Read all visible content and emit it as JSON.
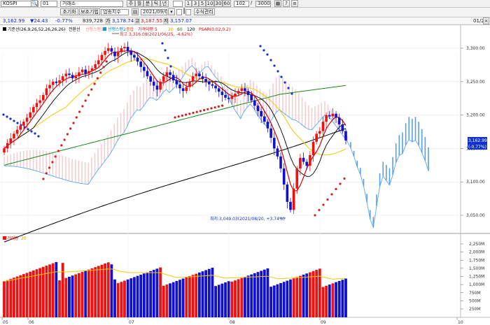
{
  "toolbar": {
    "symbol": "KOSPI",
    "num": "01",
    "exchange": "거래소",
    "period_tabs": [
      "주",
      "월",
      "분",
      "틱",
      "년"
    ],
    "interval_buttons": [
      "1",
      "3",
      "5",
      "10",
      "30",
      "60"
    ],
    "count": "102",
    "total": "3000",
    "right_icons": [
      "grid-icon",
      "help-icon",
      "menu-icon"
    ]
  },
  "toolbar2": {
    "reset": "초기화",
    "aux": "보조기법",
    "industry": "업종지수",
    "date": "2021/09/08",
    "modify": "수식관리"
  },
  "infobar": {
    "items": [
      "3,162.99",
      "▼24.43",
      "-0.77%",
      "839,728",
      "3,178.74",
      "3,187.55",
      "3,157.07"
    ],
    "flags": [
      "가",
      "고",
      "저"
    ],
    "right": "01/2"
  },
  "chart_data": {
    "type": "candlestick",
    "legend": {
      "items": [
        {
          "label": "기준선(26,9,26,52,26,26,26)",
          "color": "#000000"
        },
        {
          "label": "전환선",
          "color": "#000000"
        },
        {
          "label": "선행스팬1",
          "color": "#ff6060"
        },
        {
          "label": "선행스팬2",
          "color": "#00a0e0"
        },
        {
          "label": "종합",
          "color": "#e04000"
        },
        {
          "label": "가격이평 5",
          "color": "#e00000"
        },
        {
          "label": "20",
          "color": "#e0b000"
        },
        {
          "label": "60",
          "color": "#008000"
        },
        {
          "label": "120",
          "color": "#000000"
        },
        {
          "label": "PSAR(0.02,0.2)",
          "color": "#d01818"
        }
      ]
    },
    "x_tick_labels": [
      "05",
      "06",
      "07",
      "08",
      "09",
      "10"
    ],
    "y_ticks": [
      "3,300.00",
      "3,250.00",
      "3,200.00",
      "3,150.00",
      "3,100.00",
      "3,050.00"
    ],
    "ylim": [
      3030,
      3320
    ],
    "annotation_high": "최고 3,316.08(2021/06/25, -4.62%)",
    "annotation_low": "최저:3,049.03(2021/08/20, +3.74%)",
    "current_price": "3,162.99",
    "current_change": "(-0.77%)",
    "volume": {
      "legend": "거래량",
      "ma_legend": "20",
      "y_ticks": [
        "2,250M",
        "2,000M",
        "1,750M",
        "1,500M",
        "1,250M",
        "1,000M",
        "750M",
        "500M",
        "250M"
      ],
      "ylim": [
        0,
        2400
      ]
    }
  },
  "colors": {
    "up": "#ee1111",
    "down": "#1111cc",
    "cloud": "#f2cfd4",
    "ma5": "#d80000",
    "ma20": "#f0c800",
    "ma60": "#158a15",
    "ma120": "#000000",
    "kijun": "#000000",
    "span2": "#55aaee",
    "psar_up": "#cc2222",
    "psar_down": "#1133cc"
  }
}
